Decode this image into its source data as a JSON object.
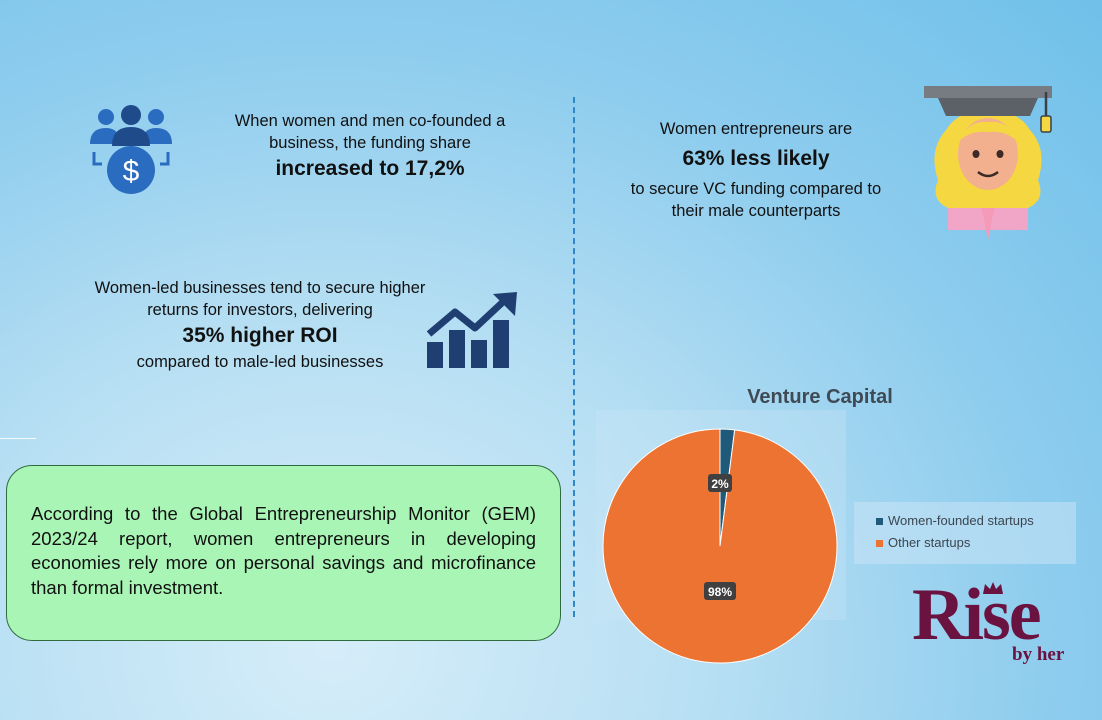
{
  "stat_cofounded": {
    "line1": "When women and men co-founded a",
    "line2": "business, the funding share",
    "highlight": "increased to 17,2%"
  },
  "stat_vc_likelihood": {
    "line1": "Women entrepreneurs are",
    "highlight": "63% less likely",
    "line2": "to secure VC funding compared to",
    "line3": "their male counterparts"
  },
  "stat_roi": {
    "line1": "Women-led businesses tend to secure higher",
    "line2": "returns for investors, delivering",
    "highlight": "35% higher ROI",
    "line3": "compared to male-led businesses"
  },
  "note": {
    "text": "According to the Global Entrepreneurship Monitor (GEM) 2023/24 report, women entrepreneurs in developing economies rely more on personal savings and microfinance than formal investment."
  },
  "icons": {
    "people": "people-funding-icon",
    "growth": "bar-growth-chart-icon",
    "graduate": "woman-graduate-icon",
    "crown": "crown-icon"
  },
  "colors": {
    "dark_blue": "#1f4b8a",
    "mid_blue": "#2a6cbf",
    "note_bg": "#a9f5b6",
    "women_slice": "#1f5a7a",
    "other_slice": "#ed7332",
    "logo": "#6a1340"
  },
  "chart_data": {
    "type": "pie",
    "title": "Venture Capital",
    "categories": [
      "Women-founded startups",
      "Other startups"
    ],
    "values": [
      2,
      98
    ],
    "data_labels": [
      "2%",
      "98%"
    ],
    "colors": [
      "#1f5a7a",
      "#ed7332"
    ],
    "legend_position": "right"
  },
  "logo": {
    "text": "Rise",
    "subtitle": "by her"
  }
}
